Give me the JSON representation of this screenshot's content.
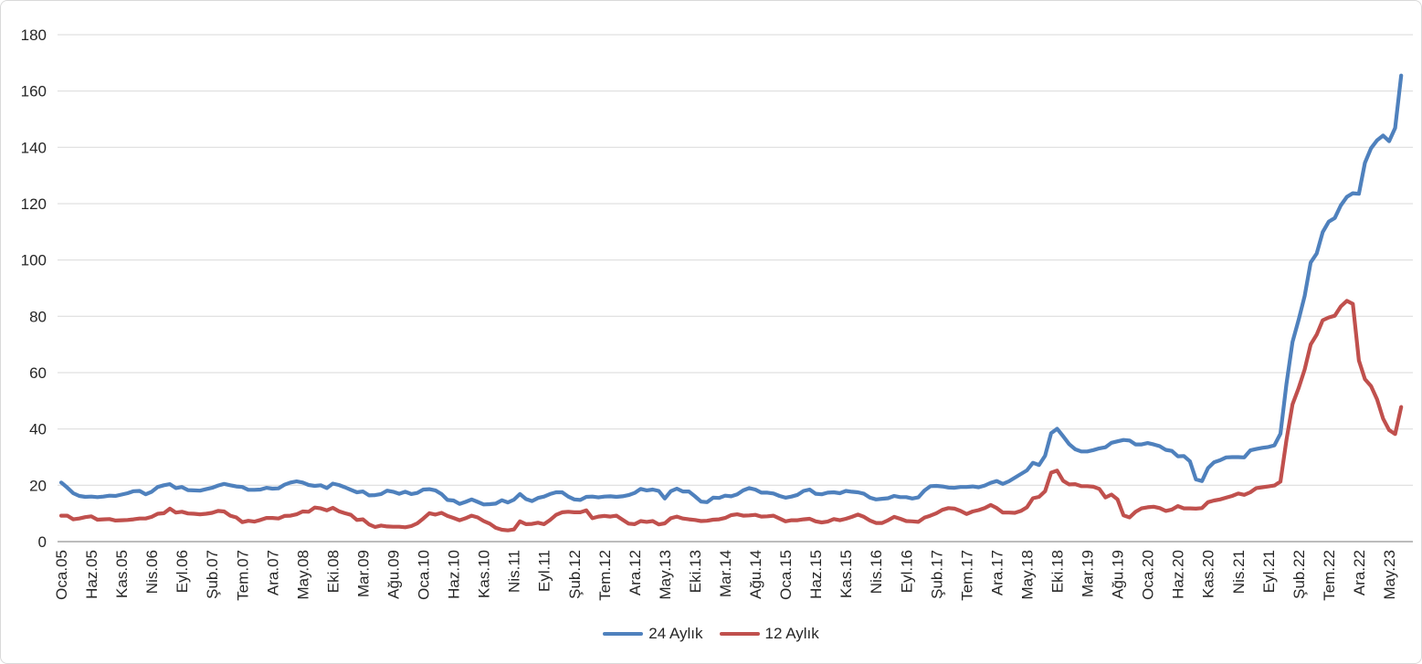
{
  "chart_data": {
    "type": "line",
    "title": "",
    "x_axis": {
      "unit": "month",
      "start": "Oca.05",
      "tick_every_n_months": 5,
      "tick_labels": [
        "Oca.05",
        "Haz.05",
        "Kas.05",
        "Nis.06",
        "Eyl.06",
        "Şub.07",
        "Tem.07",
        "Ara.07",
        "May.08",
        "Eki.08",
        "Mar.09",
        "Ağu.09",
        "Oca.10",
        "Haz.10",
        "Kas.10",
        "Nis.11",
        "Eyl.11",
        "Şub.12",
        "Tem.12",
        "Ara.12",
        "May.13",
        "Eki.13",
        "Mar.14",
        "Ağu.14",
        "Oca.15",
        "Haz.15",
        "Kas.15",
        "Nis.16",
        "Eyl.16",
        "Şub.17",
        "Tem.17",
        "Ara.17",
        "May.18",
        "Eki.18",
        "Mar.19",
        "Ağu.19",
        "Oca.20",
        "Haz.20",
        "Kas.20",
        "Nis.21",
        "Eyl.21",
        "Şub.22",
        "Tem.22",
        "Ara.22",
        "May.23"
      ]
    },
    "y_axis": {
      "min": 0,
      "max": 180,
      "tick_step": 20,
      "ticks": [
        0,
        20,
        40,
        60,
        80,
        100,
        120,
        140,
        160,
        180
      ]
    },
    "grid": "horizontal-only",
    "legend_position": "bottom-center",
    "series": [
      {
        "name": "24 Aylık",
        "color": "#4F81BD",
        "values": [
          21.0,
          19.2,
          17.2,
          16.2,
          15.9,
          16.0,
          15.8,
          16.0,
          16.3,
          16.2,
          16.7,
          17.2,
          17.9,
          18.0,
          16.8,
          17.7,
          19.4,
          20.0,
          20.4,
          19.0,
          19.4,
          18.3,
          18.2,
          18.1,
          18.6,
          19.1,
          19.9,
          20.5,
          20.0,
          19.6,
          19.4,
          18.4,
          18.4,
          18.5,
          19.1,
          18.8,
          18.9,
          20.2,
          21.0,
          21.4,
          21.0,
          20.1,
          19.8,
          20.0,
          19.0,
          20.6,
          20.1,
          19.3,
          18.4,
          17.5,
          17.8,
          16.4,
          16.5,
          16.9,
          18.1,
          17.7,
          17.0,
          17.7,
          16.9,
          17.3,
          18.5,
          18.6,
          18.2,
          16.9,
          14.8,
          14.6,
          13.4,
          14.1,
          15.0,
          14.1,
          13.2,
          13.3,
          13.5,
          14.7,
          13.9,
          14.9,
          16.9,
          15.1,
          14.4,
          15.5,
          16.0,
          16.9,
          17.5,
          17.5,
          16.0,
          15.0,
          14.8,
          15.9,
          16.0,
          15.7,
          16.0,
          16.1,
          15.9,
          16.1,
          16.5,
          17.3,
          18.7,
          18.2,
          18.5,
          18.0,
          15.3,
          17.9,
          18.8,
          17.8,
          17.8,
          16.1,
          14.2,
          14.0,
          15.6,
          15.5,
          16.3,
          16.1,
          16.8,
          18.2,
          19.0,
          18.5,
          17.4,
          17.4,
          17.1,
          16.2,
          15.6,
          16.0,
          16.6,
          18.0,
          18.5,
          17.0,
          16.8,
          17.4,
          17.5,
          17.2,
          18.0,
          17.7,
          17.5,
          17.0,
          15.6,
          15.0,
          15.2,
          15.4,
          16.2,
          15.8,
          15.8,
          15.3,
          15.7,
          18.1,
          19.7,
          19.8,
          19.6,
          19.2,
          19.1,
          19.4,
          19.4,
          19.6,
          19.3,
          19.9,
          20.9,
          21.5,
          20.5,
          21.4,
          22.7,
          24.0,
          25.3,
          28.0,
          27.2,
          30.5,
          38.5,
          40.1,
          37.4,
          34.6,
          32.8,
          32.0,
          32.0,
          32.5,
          33.1,
          33.5,
          35.1,
          35.6,
          36.1,
          35.9,
          34.5,
          34.5,
          35.0,
          34.5,
          33.9,
          32.6,
          32.2,
          30.3,
          30.4,
          28.5,
          22.1,
          21.5,
          26.1,
          28.2,
          28.9,
          29.9,
          30.0,
          30.0,
          29.9,
          32.4,
          32.9,
          33.3,
          33.6,
          34.2,
          38.3,
          56.0,
          70.9,
          78.6,
          87.2,
          99.1,
          102.3,
          109.9,
          113.6,
          114.9,
          119.4,
          122.4,
          123.7,
          123.5,
          134.5,
          139.7,
          142.5,
          144.2,
          142.2,
          146.9,
          165.5
        ]
      },
      {
        "name": "12 Aylık",
        "color": "#C0504D",
        "values": [
          9.2,
          9.2,
          7.9,
          8.2,
          8.7,
          9.0,
          7.8,
          7.9,
          8.0,
          7.5,
          7.6,
          7.7,
          7.9,
          8.2,
          8.2,
          8.8,
          9.9,
          10.1,
          11.7,
          10.3,
          10.6,
          10.0,
          9.9,
          9.7,
          9.9,
          10.2,
          10.9,
          10.7,
          9.2,
          8.6,
          6.9,
          7.4,
          7.1,
          7.7,
          8.4,
          8.4,
          8.2,
          9.1,
          9.2,
          9.7,
          10.7,
          10.6,
          12.1,
          11.8,
          11.1,
          12.0,
          10.8,
          10.1,
          9.5,
          7.7,
          7.9,
          6.1,
          5.2,
          5.7,
          5.4,
          5.3,
          5.3,
          5.1,
          5.5,
          6.5,
          8.2,
          10.1,
          9.6,
          10.2,
          9.1,
          8.4,
          7.6,
          8.3,
          9.2,
          8.6,
          7.3,
          6.4,
          4.9,
          4.2,
          4.0,
          4.3,
          7.2,
          6.2,
          6.3,
          6.7,
          6.2,
          7.7,
          9.5,
          10.4,
          10.6,
          10.4,
          10.4,
          11.1,
          8.3,
          8.9,
          9.1,
          8.9,
          9.2,
          7.8,
          6.4,
          6.2,
          7.3,
          7.0,
          7.3,
          6.1,
          6.5,
          8.3,
          8.9,
          8.2,
          7.9,
          7.7,
          7.3,
          7.4,
          7.8,
          7.9,
          8.4,
          9.4,
          9.7,
          9.2,
          9.3,
          9.5,
          8.9,
          9.0,
          9.2,
          8.2,
          7.2,
          7.6,
          7.6,
          7.9,
          8.1,
          7.2,
          6.8,
          7.1,
          8.0,
          7.6,
          8.1,
          8.8,
          9.6,
          8.8,
          7.5,
          6.6,
          6.6,
          7.6,
          8.8,
          8.1,
          7.3,
          7.2,
          7.0,
          8.5,
          9.2,
          10.1,
          11.3,
          11.9,
          11.7,
          10.9,
          9.8,
          10.7,
          11.2,
          11.9,
          13.0,
          11.9,
          10.3,
          10.3,
          10.2,
          10.9,
          12.2,
          15.4,
          15.9,
          17.9,
          24.5,
          25.2,
          21.6,
          20.3,
          20.4,
          19.7,
          19.7,
          19.5,
          18.7,
          15.7,
          16.7,
          15.0,
          9.3,
          8.6,
          10.6,
          11.8,
          12.2,
          12.4,
          11.9,
          10.9,
          11.4,
          12.6,
          11.8,
          11.8,
          11.7,
          11.9,
          14.0,
          14.6,
          15.0,
          15.6,
          16.2,
          17.1,
          16.6,
          17.5,
          19.0,
          19.3,
          19.6,
          19.9,
          21.3,
          36.1,
          48.7,
          54.4,
          61.1,
          70.0,
          73.5,
          78.6,
          79.6,
          80.2,
          83.5,
          85.5,
          84.4,
          64.3,
          57.7,
          55.2,
          50.5,
          43.7,
          39.6,
          38.2,
          47.8
        ]
      }
    ]
  },
  "styles": {
    "background": "#FFFFFF",
    "border_color": "#D9D9D9",
    "gridline_color": "#D9D9D9",
    "axis_line_color": "#A6A6A6",
    "text_color": "#262626"
  }
}
